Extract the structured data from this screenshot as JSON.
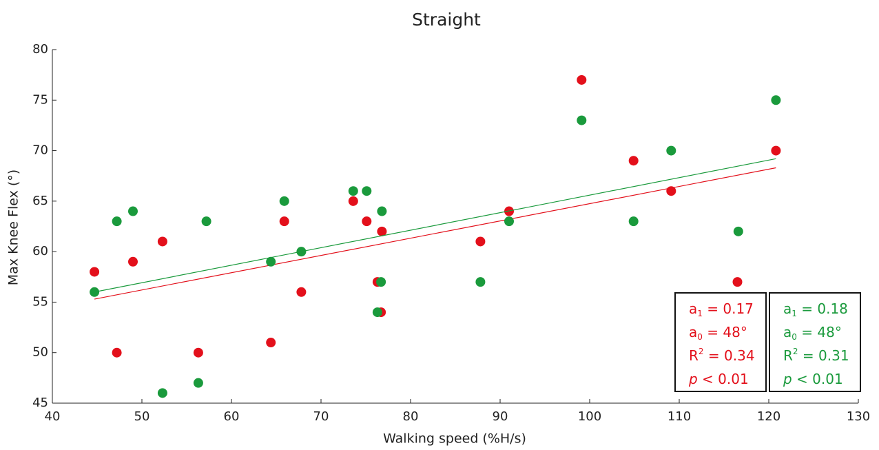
{
  "chart_data": {
    "type": "scatter",
    "title": "Straight",
    "x_label": "Walking speed (%H/s)",
    "y_label": "Max Knee Flex (°)",
    "xlim": [
      40,
      130
    ],
    "ylim": [
      45,
      80
    ],
    "xticks": [
      40,
      50,
      60,
      70,
      80,
      90,
      100,
      110,
      120,
      130
    ],
    "yticks": [
      45,
      50,
      55,
      60,
      65,
      70,
      75,
      80
    ],
    "series": [
      {
        "color": "#e3101b",
        "x": [
          44.7,
          47.2,
          49.0,
          52.3,
          56.3,
          65.9,
          64.4,
          67.8,
          73.6,
          75.1,
          76.3,
          76.7,
          76.8,
          87.8,
          91.0,
          99.1,
          104.9,
          109.1,
          116.5,
          120.8
        ],
        "values": [
          58,
          50,
          59,
          61,
          50,
          63,
          51,
          56,
          65,
          63,
          57,
          54,
          62,
          61,
          64,
          77,
          69,
          66,
          57,
          70
        ],
        "fit": {
          "x": [
            44.7,
            120.8
          ],
          "y": [
            55.3,
            68.3
          ]
        },
        "stats": [
          {
            "main": "a",
            "sub": "1",
            "rest": " = 0.17"
          },
          {
            "main": "a",
            "sub": "0",
            "rest": " = 48°"
          },
          {
            "main": "R",
            "sup": "2",
            "rest": " = 0.34"
          },
          {
            "main": "p",
            "italic": true,
            "rest": " < 0.01"
          }
        ]
      },
      {
        "color": "#1a9a3c",
        "x": [
          44.7,
          47.2,
          49.0,
          52.3,
          56.3,
          57.2,
          64.4,
          65.9,
          67.8,
          73.6,
          75.1,
          76.3,
          76.7,
          76.8,
          87.8,
          91.0,
          99.1,
          104.9,
          109.1,
          116.6,
          120.8
        ],
        "values": [
          56,
          63,
          64,
          46,
          47,
          63,
          59,
          65,
          60,
          66,
          66,
          54,
          57,
          64,
          57,
          63,
          73,
          63,
          70,
          62,
          75
        ],
        "fit": {
          "x": [
            44.7,
            120.8
          ],
          "y": [
            56.0,
            69.2
          ]
        },
        "stats": [
          {
            "main": "a",
            "sub": "1",
            "rest": " = 0.18"
          },
          {
            "main": "a",
            "sub": "0",
            "rest": " = 48°"
          },
          {
            "main": "R",
            "sup": "2",
            "rest": " = 0.31"
          },
          {
            "main": "p",
            "italic": true,
            "rest": " < 0.01"
          }
        ]
      }
    ]
  }
}
